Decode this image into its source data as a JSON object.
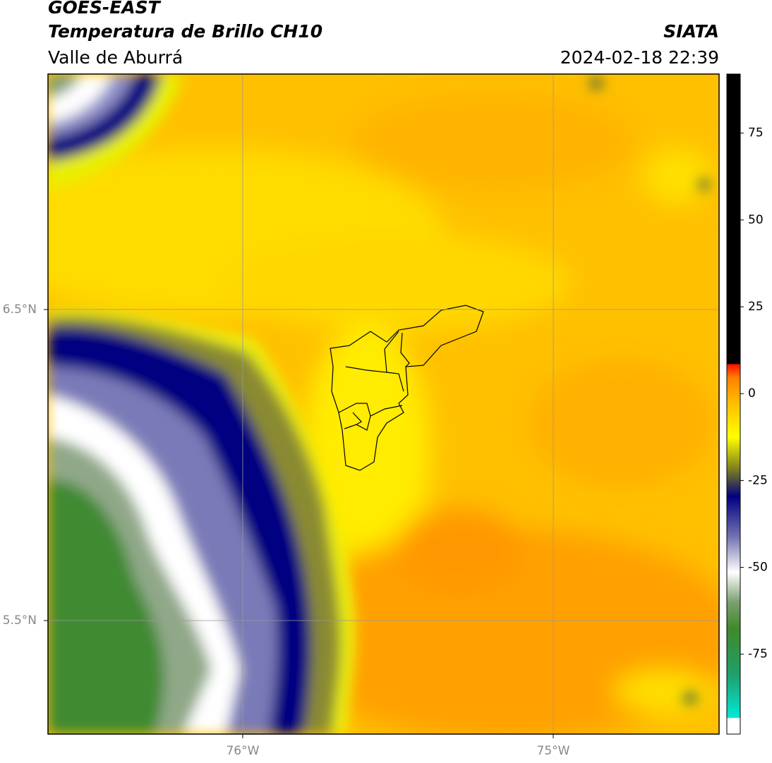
{
  "header": {
    "title": "GOES-EAST",
    "subtitle": "Temperatura de Brillo CH10",
    "region": "Valle de Aburrá",
    "source": "SIATA",
    "timestamp": "2024-02-18 22:39"
  },
  "map": {
    "xlim": [
      -76.627,
      -74.466
    ],
    "ylim": [
      5.135,
      7.257
    ],
    "xticks": [
      {
        "value": -76,
        "label": "76°W"
      },
      {
        "value": -75,
        "label": "75°W"
      }
    ],
    "yticks": [
      {
        "value": 6.5,
        "label": "6.5°N"
      },
      {
        "value": 5.5,
        "label": "5.5°N"
      }
    ],
    "grid": true
  },
  "colorbar": {
    "lim": [
      -98,
      92
    ],
    "ticks": [
      75,
      50,
      25,
      0,
      -25,
      -50,
      -75
    ]
  }
}
